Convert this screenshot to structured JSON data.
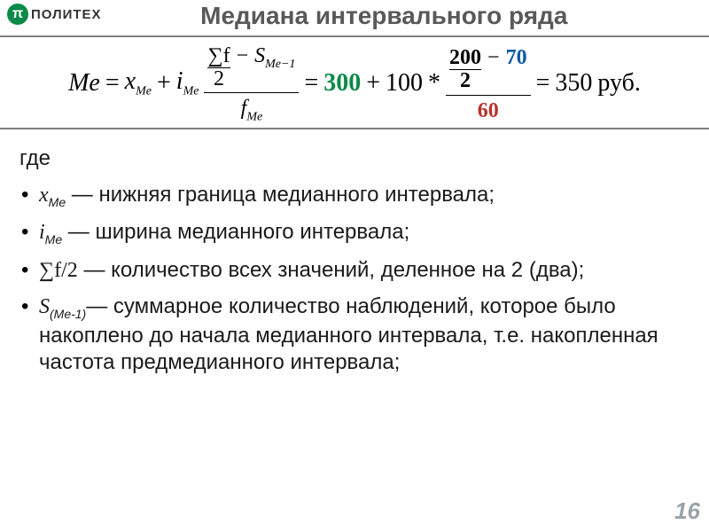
{
  "logo": {
    "icon_text": "π",
    "text": "ПОЛИТЕХ",
    "icon_bg": "#0b8a48"
  },
  "title": "Медиана интервального ряда",
  "formula": {
    "Me_label": "Me",
    "eq": "=",
    "plus": "+",
    "minus": "−",
    "star": "*",
    "x": "x",
    "x_sub": "Me",
    "i": "i",
    "i_sub": "Me",
    "sumf": "∑f",
    "two": "2",
    "S": "S",
    "S_sub": "Me−1",
    "f": "f",
    "f_sub": "Me",
    "val_x": "300",
    "val_i": "100",
    "val_half_num": "200",
    "val_half_den": "2",
    "val_S": "70",
    "val_f": "60",
    "result": "350",
    "unit": "руб."
  },
  "colors": {
    "title": "#595959",
    "text": "#1a1a1a",
    "rule": "#808080",
    "green": "#0b8a48",
    "blue": "#0a5aa8",
    "red": "#b7322c",
    "pagenum": "#9aa2aa"
  },
  "where_label": "где",
  "defs": [
    {
      "sym_html": "x",
      "sub": "Me",
      "desc": " — нижняя граница медианного интервала;"
    },
    {
      "sym_html": "i",
      "sub": "Me",
      "desc": " — ширина медианного интервала;"
    },
    {
      "sym_html": "∑f/2",
      "sub": "",
      "desc": " — количество всех значений, деленное на 2 (два);"
    },
    {
      "sym_html": "S",
      "sub": "(Me-1)",
      "desc": "— суммарное количество наблюдений, которое было накоплено до начала медианного интервала, т.е. накопленная частота предмедианного интервала;"
    }
  ],
  "page_number": "16"
}
